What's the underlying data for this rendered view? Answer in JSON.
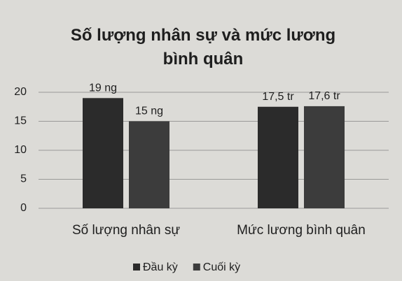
{
  "chart_data": {
    "type": "bar",
    "title": "Số lượng nhân sự và mức lương bình quân",
    "categories": [
      "Số lượng nhân sự",
      "Mức lương bình quân"
    ],
    "series": [
      {
        "name": "Đầu kỳ",
        "color": "#2b2b2b",
        "values": [
          19,
          17.5
        ],
        "value_labels": [
          "19 ng",
          "17,5 tr"
        ]
      },
      {
        "name": "Cuối kỳ",
        "color": "#3c3c3c",
        "values": [
          15,
          17.6
        ],
        "value_labels": [
          "15 ng",
          "17,6 tr"
        ]
      }
    ],
    "ylim": [
      0,
      20
    ],
    "yticks": [
      0,
      5,
      10,
      15,
      20
    ],
    "grid": true,
    "legend": "bottom"
  }
}
